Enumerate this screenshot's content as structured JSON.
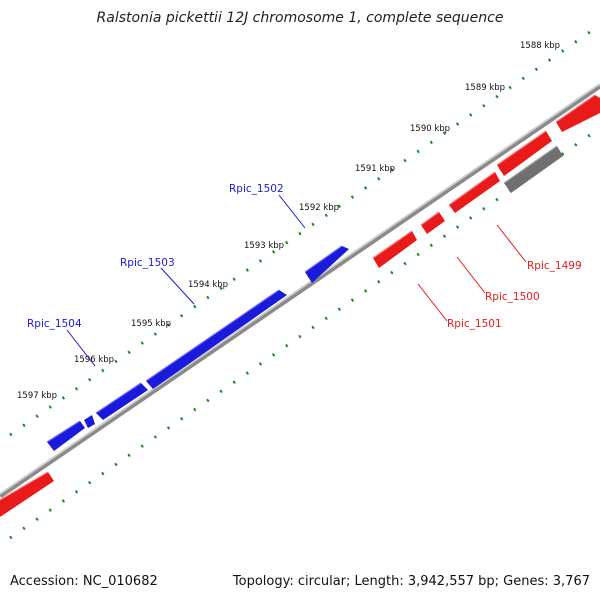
{
  "title": "Ralstonia pickettii 12J chromosome 1, complete sequence",
  "footer": {
    "accession": "Accession: NC_010682",
    "summary": "Topology: circular; Length: 3,942,557 bp; Genes: 3,767"
  },
  "colors": {
    "forward": "#1a1adb",
    "reverse": "#e81a1a",
    "other": "#707070",
    "backbone": "#8a8a8a",
    "ticks": "#1f8a1f"
  },
  "scale_ticks": [
    "1588 kbp",
    "1589 kbp",
    "1590 kbp",
    "1591 kbp",
    "1592 kbp",
    "1593 kbp",
    "1594 kbp",
    "1595 kbp",
    "1596 kbp",
    "1597 kbp"
  ],
  "gene_labels": {
    "forward": [
      "Rpic_1502",
      "Rpic_1503",
      "Rpic_1504"
    ],
    "reverse": [
      "Rpic_1499",
      "Rpic_1500",
      "Rpic_1501"
    ]
  }
}
